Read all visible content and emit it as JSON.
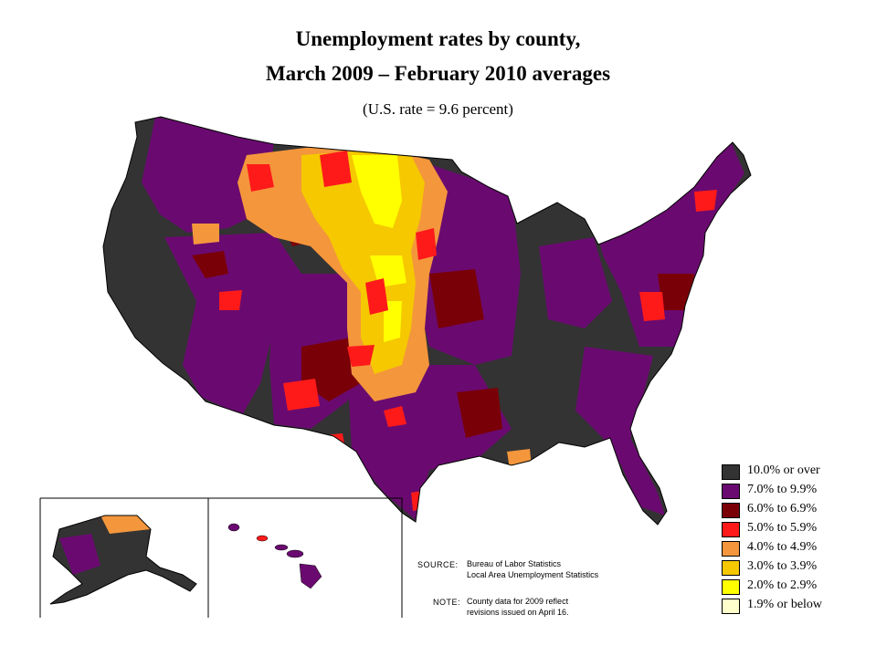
{
  "title_line1": "Unemployment rates by county,",
  "title_line2": "March 2009 – February 2010 averages",
  "subtitle": "(U.S. rate = 9.6 percent)",
  "legend": [
    {
      "label": "10.0% or over",
      "color": "#333333"
    },
    {
      "label": "7.0% to 9.9%",
      "color": "#6a0a70"
    },
    {
      "label": "6.0% to 6.9%",
      "color": "#7a0008"
    },
    {
      "label": "5.0% to 5.9%",
      "color": "#ff1a1a"
    },
    {
      "label": "4.0% to 4.9%",
      "color": "#f4963c"
    },
    {
      "label": "3.0% to 3.9%",
      "color": "#f5c800"
    },
    {
      "label": "2.0% to 2.9%",
      "color": "#ffff00"
    },
    {
      "label": "1.9% or below",
      "color": "#ffffcc"
    }
  ],
  "source": {
    "label": "SOURCE:",
    "line1": "Bureau of Labor Statistics",
    "line2": "Local Area Unemployment Statistics"
  },
  "note": {
    "label": "NOTE:",
    "line1": "County data for 2009 reflect",
    "line2": "revisions issued on April 16."
  },
  "insets": [
    "Alaska",
    "Hawaii"
  ]
}
